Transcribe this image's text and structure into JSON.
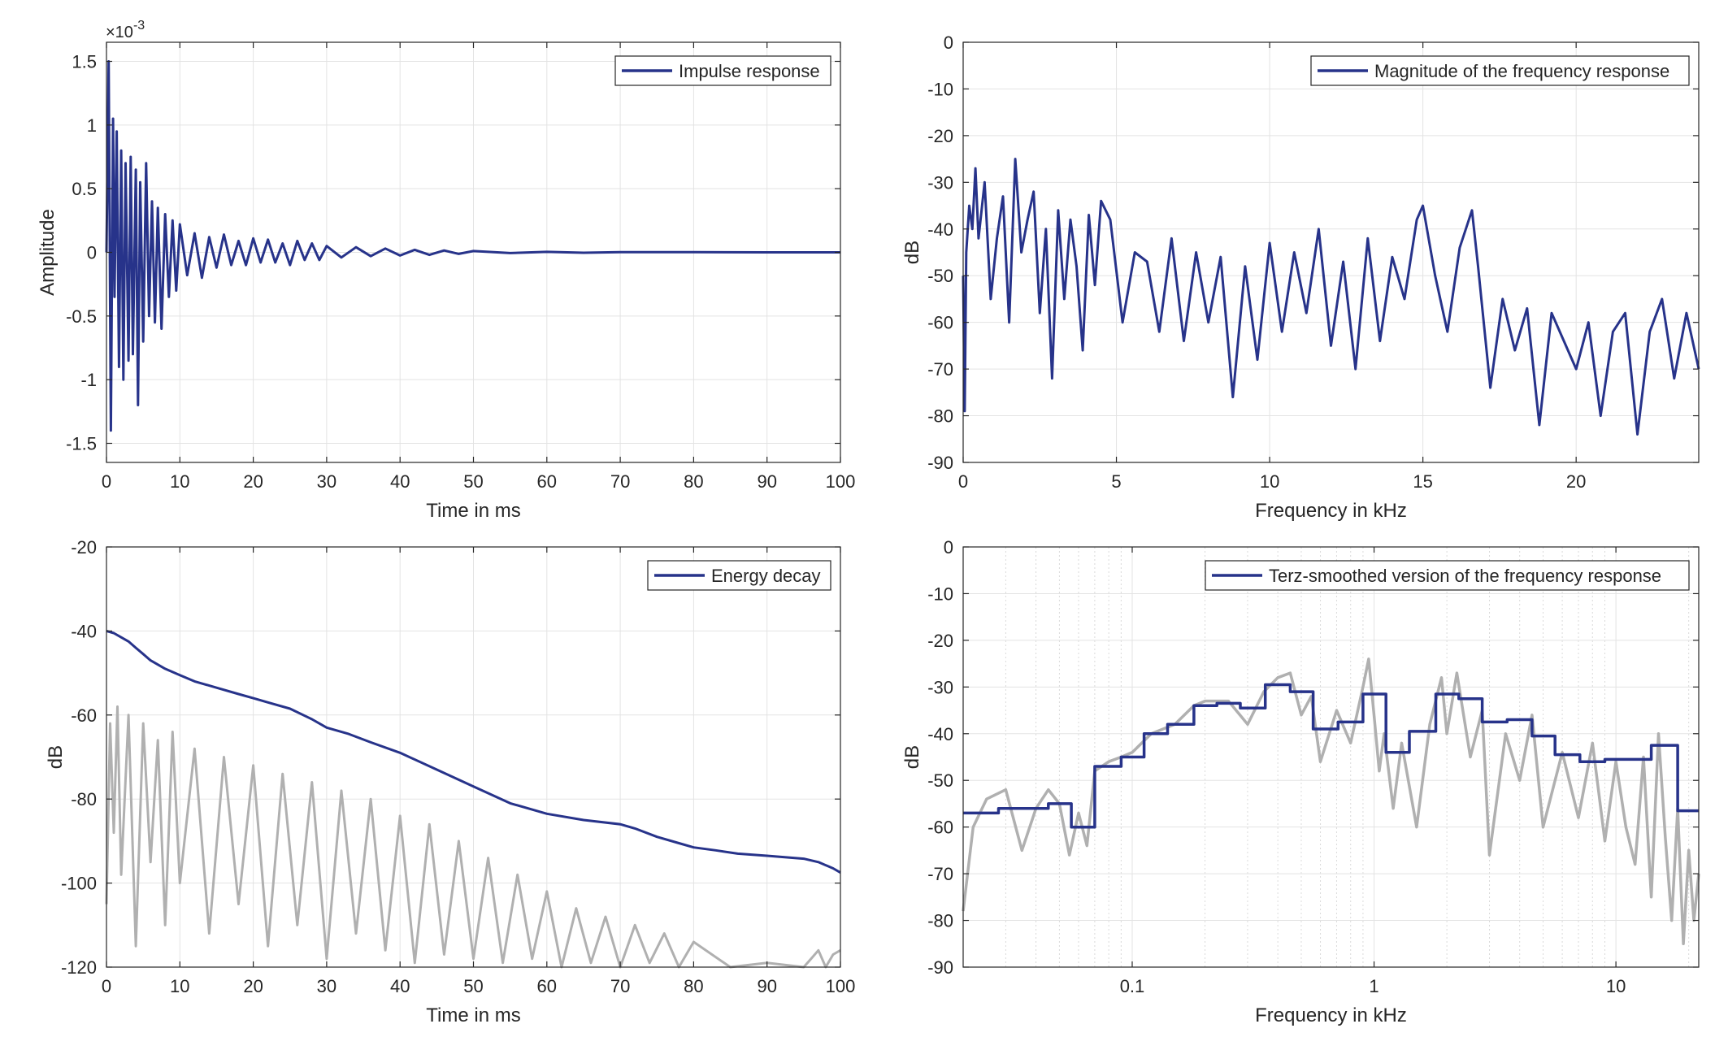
{
  "colors": {
    "main_series": "#27338a",
    "gray_series": "#b0b0b0",
    "grid": "#e3e3e3",
    "axis": "#262626"
  },
  "chart_data": [
    {
      "id": "impulse",
      "type": "line",
      "title": "",
      "xlabel": "Time in ms",
      "ylabel": "Amplitude",
      "exponent_label": "×10",
      "exponent_power": "-3",
      "xlim": [
        0,
        100
      ],
      "ylim": [
        -1.65,
        1.65
      ],
      "xticks": [
        0,
        10,
        20,
        30,
        40,
        50,
        60,
        70,
        80,
        90,
        100
      ],
      "xtick_labels": [
        "0",
        "10",
        "20",
        "30",
        "40",
        "50",
        "60",
        "70",
        "80",
        "90",
        "100"
      ],
      "yticks": [
        -1.5,
        -1,
        -0.5,
        0,
        0.5,
        1,
        1.5
      ],
      "ytick_labels": [
        "-1.5",
        "-1",
        "-0.5",
        "0",
        "0.5",
        "1",
        "1.5"
      ],
      "grid": true,
      "legend_position": "top-right",
      "series": [
        {
          "name": "Impulse response",
          "color": "#27338a",
          "x": [
            0,
            0.3,
            0.6,
            0.9,
            1.1,
            1.4,
            1.7,
            2.0,
            2.3,
            2.6,
            3.0,
            3.3,
            3.6,
            4.0,
            4.3,
            4.6,
            5.0,
            5.4,
            5.8,
            6.2,
            6.6,
            7.0,
            7.5,
            8,
            8.5,
            9,
            9.5,
            10,
            11,
            12,
            13,
            14,
            15,
            16,
            17,
            18,
            19,
            20,
            21,
            22,
            23,
            24,
            25,
            26,
            27,
            28,
            29,
            30,
            32,
            34,
            36,
            38,
            40,
            42,
            44,
            46,
            48,
            50,
            55,
            60,
            65,
            70,
            80,
            90,
            100
          ],
          "values": [
            0,
            1.5,
            -1.4,
            1.05,
            -0.35,
            0.95,
            -0.9,
            0.8,
            -1.0,
            0.7,
            -0.85,
            0.75,
            -0.8,
            0.65,
            -1.2,
            0.55,
            -0.7,
            0.7,
            -0.5,
            0.4,
            -0.55,
            0.35,
            -0.6,
            0.3,
            -0.35,
            0.25,
            -0.3,
            0.22,
            -0.18,
            0.15,
            -0.2,
            0.12,
            -0.12,
            0.14,
            -0.1,
            0.09,
            -0.1,
            0.11,
            -0.08,
            0.1,
            -0.08,
            0.07,
            -0.1,
            0.09,
            -0.06,
            0.07,
            -0.06,
            0.05,
            -0.04,
            0.04,
            -0.03,
            0.03,
            -0.025,
            0.02,
            -0.02,
            0.015,
            -0.012,
            0.01,
            -0.006,
            0.004,
            -0.003,
            0.002,
            0.001,
            0,
            0
          ]
        }
      ]
    },
    {
      "id": "magnitude",
      "type": "line",
      "title": "",
      "xlabel": "Frequency in kHz",
      "ylabel": "dB",
      "xlim": [
        0,
        24
      ],
      "ylim": [
        -90,
        0
      ],
      "xticks": [
        0,
        5,
        10,
        15,
        20
      ],
      "xtick_labels": [
        "0",
        "5",
        "10",
        "15",
        "20"
      ],
      "yticks": [
        0,
        -10,
        -20,
        -30,
        -40,
        -50,
        -60,
        -70,
        -80,
        -90
      ],
      "ytick_labels": [
        "0",
        "-10",
        "-20",
        "-30",
        "-40",
        "-50",
        "-60",
        "-70",
        "-80",
        "-90"
      ],
      "grid": true,
      "legend_position": "top-right",
      "series": [
        {
          "name": "Magnitude of the frequency response",
          "color": "#27338a",
          "x": [
            0,
            0.05,
            0.1,
            0.2,
            0.3,
            0.4,
            0.5,
            0.7,
            0.9,
            1.1,
            1.3,
            1.5,
            1.7,
            1.9,
            2.1,
            2.3,
            2.5,
            2.7,
            2.9,
            3.1,
            3.3,
            3.5,
            3.7,
            3.9,
            4.1,
            4.3,
            4.5,
            4.8,
            5.2,
            5.6,
            6.0,
            6.4,
            6.8,
            7.2,
            7.6,
            8.0,
            8.4,
            8.8,
            9.2,
            9.6,
            10.0,
            10.4,
            10.8,
            11.2,
            11.6,
            12.0,
            12.4,
            12.8,
            13.2,
            13.6,
            14.0,
            14.4,
            14.8,
            15.0,
            15.4,
            15.8,
            16.2,
            16.6,
            16.8,
            17.2,
            17.6,
            18.0,
            18.4,
            18.8,
            19.2,
            19.6,
            20.0,
            20.4,
            20.8,
            21.2,
            21.6,
            22.0,
            22.4,
            22.8,
            23.2,
            23.6,
            24.0
          ],
          "values": [
            -50,
            -79,
            -45,
            -35,
            -40,
            -27,
            -42,
            -30,
            -55,
            -42,
            -33,
            -60,
            -25,
            -45,
            -38,
            -32,
            -58,
            -40,
            -72,
            -36,
            -55,
            -38,
            -48,
            -66,
            -37,
            -52,
            -34,
            -38,
            -60,
            -45,
            -47,
            -62,
            -42,
            -64,
            -45,
            -60,
            -46,
            -76,
            -48,
            -68,
            -43,
            -62,
            -45,
            -58,
            -40,
            -65,
            -47,
            -70,
            -42,
            -64,
            -46,
            -55,
            -38,
            -35,
            -50,
            -62,
            -44,
            -36,
            -48,
            -74,
            -55,
            -66,
            -57,
            -82,
            -58,
            -64,
            -70,
            -60,
            -80,
            -62,
            -58,
            -84,
            -62,
            -55,
            -72,
            -58,
            -70
          ]
        }
      ]
    },
    {
      "id": "decay",
      "type": "line",
      "title": "",
      "xlabel": "Time in ms",
      "ylabel": "dB",
      "xlim": [
        0,
        100
      ],
      "ylim": [
        -120,
        -20
      ],
      "xticks": [
        0,
        10,
        20,
        30,
        40,
        50,
        60,
        70,
        80,
        90,
        100
      ],
      "xtick_labels": [
        "0",
        "10",
        "20",
        "30",
        "40",
        "50",
        "60",
        "70",
        "80",
        "90",
        "100"
      ],
      "yticks": [
        -20,
        -40,
        -60,
        -80,
        -100,
        -120
      ],
      "ytick_labels": [
        "-20",
        "-40",
        "-60",
        "-80",
        "-100",
        "-120"
      ],
      "grid": true,
      "legend_position": "top-right",
      "series": [
        {
          "name": "",
          "color": "#b0b0b0",
          "x": [
            0,
            0.5,
            1,
            1.5,
            2,
            3,
            4,
            5,
            6,
            7,
            8,
            9,
            10,
            12,
            14,
            16,
            18,
            20,
            22,
            24,
            26,
            28,
            30,
            32,
            34,
            36,
            38,
            40,
            42,
            44,
            46,
            48,
            50,
            52,
            54,
            56,
            58,
            60,
            62,
            64,
            66,
            68,
            70,
            72,
            74,
            76,
            78,
            80,
            85,
            90,
            95,
            96,
            97,
            98,
            99,
            100
          ],
          "values": [
            -105,
            -62,
            -88,
            -58,
            -98,
            -60,
            -115,
            -62,
            -95,
            -66,
            -110,
            -64,
            -100,
            -68,
            -112,
            -70,
            -105,
            -72,
            -115,
            -74,
            -110,
            -76,
            -118,
            -78,
            -112,
            -80,
            -116,
            -84,
            -119,
            -86,
            -117,
            -90,
            -118,
            -94,
            -119,
            -98,
            -118,
            -102,
            -120,
            -106,
            -119,
            -108,
            -120,
            -110,
            -119,
            -112,
            -120,
            -114,
            -120,
            -119,
            -120,
            -118,
            -116,
            -120,
            -117,
            -116
          ]
        },
        {
          "name": "Energy decay",
          "color": "#27338a",
          "x": [
            0,
            1,
            2,
            3,
            4,
            5,
            6,
            8,
            10,
            12,
            15,
            18,
            20,
            22,
            25,
            28,
            30,
            33,
            36,
            40,
            45,
            50,
            55,
            60,
            65,
            70,
            72,
            75,
            78,
            80,
            83,
            86,
            90,
            95,
            97,
            99,
            100
          ],
          "values": [
            -40,
            -40.5,
            -41.5,
            -42.5,
            -44,
            -45.5,
            -47,
            -49,
            -50.5,
            -52,
            -53.5,
            -55,
            -56,
            -57,
            -58.5,
            -61,
            -63,
            -64.5,
            -66.5,
            -69,
            -73,
            -77,
            -81,
            -83.5,
            -85,
            -86,
            -87,
            -89,
            -90.5,
            -91.5,
            -92.2,
            -93,
            -93.5,
            -94.2,
            -95,
            -96.5,
            -97.5
          ]
        }
      ]
    },
    {
      "id": "terz",
      "type": "line",
      "title": "",
      "xlabel": "Frequency in kHz",
      "ylabel": "dB",
      "xscale": "log",
      "xlim": [
        0.02,
        22
      ],
      "ylim": [
        -90,
        0
      ],
      "xticks": [
        0.1,
        1,
        10
      ],
      "xtick_labels": [
        "0.1",
        "1",
        "10"
      ],
      "yticks": [
        0,
        -10,
        -20,
        -30,
        -40,
        -50,
        -60,
        -70,
        -80,
        -90
      ],
      "ytick_labels": [
        "0",
        "-10",
        "-20",
        "-30",
        "-40",
        "-50",
        "-60",
        "-70",
        "-80",
        "-90"
      ],
      "grid": true,
      "legend_position": "top-right",
      "series": [
        {
          "name": "",
          "color": "#b0b0b0",
          "x": [
            0.02,
            0.022,
            0.025,
            0.03,
            0.035,
            0.04,
            0.045,
            0.05,
            0.055,
            0.06,
            0.065,
            0.07,
            0.08,
            0.09,
            0.1,
            0.12,
            0.15,
            0.18,
            0.2,
            0.25,
            0.3,
            0.35,
            0.4,
            0.45,
            0.5,
            0.55,
            0.6,
            0.7,
            0.8,
            0.9,
            0.95,
            1.0,
            1.05,
            1.1,
            1.2,
            1.3,
            1.5,
            1.7,
            1.9,
            2.0,
            2.2,
            2.5,
            2.8,
            3.0,
            3.5,
            4.0,
            4.5,
            5.0,
            6,
            7,
            8,
            9,
            10,
            11,
            12,
            13,
            14,
            15,
            16,
            17,
            18,
            19,
            20,
            21,
            22
          ],
          "values": [
            -78,
            -60,
            -54,
            -52,
            -65,
            -56,
            -52,
            -55,
            -66,
            -57,
            -64,
            -48,
            -46,
            -45,
            -44,
            -40,
            -38,
            -34,
            -33,
            -33,
            -38,
            -31,
            -28,
            -27,
            -36,
            -32,
            -46,
            -35,
            -42,
            -30,
            -24,
            -36,
            -48,
            -40,
            -56,
            -42,
            -60,
            -38,
            -28,
            -40,
            -27,
            -45,
            -35,
            -66,
            -40,
            -50,
            -36,
            -60,
            -44,
            -58,
            -42,
            -63,
            -46,
            -60,
            -68,
            -45,
            -75,
            -40,
            -62,
            -80,
            -56,
            -85,
            -65,
            -80,
            -70
          ]
        },
        {
          "name": "Terz-smoothed version of the frequency response",
          "color": "#27338a",
          "x": [
            0.02,
            0.028,
            0.028,
            0.045,
            0.045,
            0.056,
            0.056,
            0.07,
            0.07,
            0.09,
            0.09,
            0.112,
            0.112,
            0.14,
            0.14,
            0.18,
            0.18,
            0.224,
            0.224,
            0.28,
            0.28,
            0.355,
            0.355,
            0.45,
            0.45,
            0.56,
            0.56,
            0.71,
            0.71,
            0.9,
            0.9,
            1.12,
            1.12,
            1.4,
            1.4,
            1.8,
            1.8,
            2.24,
            2.24,
            2.8,
            2.8,
            3.55,
            3.55,
            4.5,
            4.5,
            5.6,
            5.6,
            7.1,
            7.1,
            9,
            9,
            11.2,
            11.2,
            14,
            14,
            18,
            18,
            22
          ],
          "values": [
            -57,
            -57,
            -56,
            -56,
            -55,
            -55,
            -60,
            -60,
            -47,
            -47,
            -45,
            -45,
            -40,
            -40,
            -38,
            -38,
            -34,
            -34,
            -33.5,
            -33.5,
            -34.5,
            -34.5,
            -29.5,
            -29.5,
            -31,
            -31,
            -39,
            -39,
            -37.5,
            -37.5,
            -31.5,
            -31.5,
            -44,
            -44,
            -39.5,
            -39.5,
            -31.5,
            -31.5,
            -32.5,
            -32.5,
            -37.5,
            -37.5,
            -37,
            -37,
            -40.5,
            -40.5,
            -44.5,
            -44.5,
            -46,
            -46,
            -45.5,
            -45.5,
            -45.5,
            -45.5,
            -42.5,
            -42.5,
            -56.5,
            -56.5
          ]
        }
      ]
    }
  ]
}
